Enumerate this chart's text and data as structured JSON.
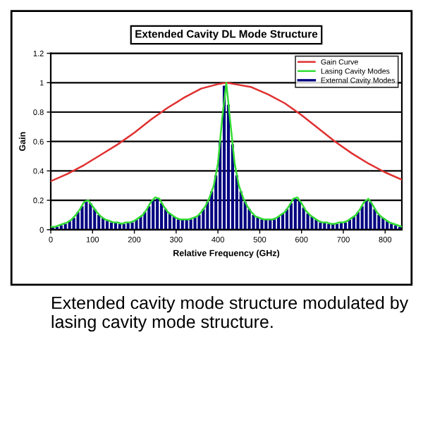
{
  "chart_data": {
    "type": "line",
    "title": "Extended Cavity DL Mode Structure",
    "xlabel": "Relative Frequency (GHz)",
    "ylabel": "Gain",
    "xlim": [
      0,
      840
    ],
    "xticks": [
      0,
      100,
      200,
      300,
      400,
      500,
      600,
      700,
      800
    ],
    "ylim": [
      0,
      1.2
    ],
    "yticks": [
      0,
      0.2,
      0.4,
      0.6,
      0.8,
      1,
      1.2
    ],
    "grid": "y",
    "legend": "top right",
    "marker": "none",
    "annotations": [
      "Extended cavity mode structure modulated by lasing cavity mode structure."
    ],
    "series": [
      {
        "name": "Gain Curve",
        "color": "#e03030",
        "x": [
          0,
          40,
          80,
          120,
          160,
          200,
          240,
          280,
          320,
          360,
          400,
          420,
          440,
          480,
          520,
          560,
          600,
          640,
          680,
          720,
          760,
          800,
          840
        ],
        "values": [
          0.33,
          0.38,
          0.44,
          0.51,
          0.58,
          0.66,
          0.75,
          0.83,
          0.9,
          0.96,
          0.99,
          1.0,
          0.99,
          0.97,
          0.92,
          0.86,
          0.78,
          0.69,
          0.6,
          0.52,
          0.45,
          0.39,
          0.34
        ]
      },
      {
        "name": "Lasing Cavity Modes",
        "color": "#33dd33",
        "x": [
          0,
          10,
          20,
          30,
          40,
          50,
          60,
          70,
          80,
          90,
          100,
          110,
          120,
          130,
          140,
          150,
          160,
          170,
          180,
          190,
          200,
          210,
          220,
          230,
          240,
          250,
          260,
          270,
          280,
          290,
          300,
          310,
          320,
          330,
          340,
          350,
          360,
          370,
          380,
          390,
          400,
          410,
          420,
          430,
          440,
          450,
          460,
          470,
          480,
          490,
          500,
          510,
          520,
          530,
          540,
          550,
          560,
          570,
          580,
          590,
          600,
          610,
          620,
          630,
          640,
          650,
          660,
          670,
          680,
          690,
          700,
          710,
          720,
          730,
          740,
          750,
          760,
          770,
          780,
          790,
          800,
          810,
          820,
          830,
          840
        ],
        "values": [
          0.02,
          0.02,
          0.03,
          0.04,
          0.05,
          0.07,
          0.1,
          0.14,
          0.19,
          0.2,
          0.16,
          0.12,
          0.09,
          0.07,
          0.06,
          0.05,
          0.05,
          0.04,
          0.05,
          0.05,
          0.06,
          0.08,
          0.1,
          0.14,
          0.19,
          0.22,
          0.21,
          0.16,
          0.12,
          0.1,
          0.08,
          0.07,
          0.07,
          0.07,
          0.08,
          0.09,
          0.12,
          0.16,
          0.22,
          0.3,
          0.45,
          0.75,
          1.0,
          0.72,
          0.45,
          0.3,
          0.22,
          0.16,
          0.12,
          0.09,
          0.08,
          0.07,
          0.07,
          0.07,
          0.08,
          0.1,
          0.12,
          0.16,
          0.21,
          0.22,
          0.18,
          0.13,
          0.1,
          0.08,
          0.06,
          0.05,
          0.05,
          0.04,
          0.04,
          0.05,
          0.05,
          0.06,
          0.08,
          0.1,
          0.14,
          0.19,
          0.21,
          0.17,
          0.12,
          0.09,
          0.07,
          0.05,
          0.04,
          0.03,
          0.02
        ]
      },
      {
        "name": "External Cavity Modes",
        "type": "bar",
        "color": "#000080",
        "x": [
          5,
          15,
          25,
          35,
          45,
          55,
          65,
          75,
          85,
          95,
          105,
          115,
          125,
          135,
          145,
          155,
          165,
          175,
          185,
          195,
          205,
          215,
          225,
          235,
          245,
          255,
          265,
          275,
          285,
          295,
          305,
          315,
          325,
          335,
          345,
          355,
          365,
          375,
          385,
          395,
          405,
          415,
          425,
          435,
          445,
          455,
          465,
          475,
          485,
          495,
          505,
          515,
          525,
          535,
          545,
          555,
          565,
          575,
          585,
          595,
          605,
          615,
          625,
          635,
          645,
          655,
          665,
          675,
          685,
          695,
          705,
          715,
          725,
          735,
          745,
          755,
          765,
          775,
          785,
          795,
          805,
          815,
          825,
          835
        ],
        "values": [
          0.02,
          0.02,
          0.03,
          0.04,
          0.06,
          0.08,
          0.12,
          0.16,
          0.19,
          0.18,
          0.14,
          0.1,
          0.08,
          0.06,
          0.05,
          0.05,
          0.04,
          0.04,
          0.05,
          0.05,
          0.07,
          0.09,
          0.12,
          0.16,
          0.2,
          0.21,
          0.18,
          0.14,
          0.11,
          0.09,
          0.07,
          0.07,
          0.07,
          0.07,
          0.08,
          0.1,
          0.14,
          0.19,
          0.26,
          0.37,
          0.6,
          0.98,
          0.85,
          0.58,
          0.37,
          0.26,
          0.19,
          0.14,
          0.1,
          0.08,
          0.07,
          0.07,
          0.07,
          0.07,
          0.09,
          0.11,
          0.14,
          0.18,
          0.21,
          0.2,
          0.15,
          0.11,
          0.09,
          0.07,
          0.05,
          0.05,
          0.04,
          0.04,
          0.04,
          0.05,
          0.05,
          0.07,
          0.09,
          0.12,
          0.16,
          0.2,
          0.19,
          0.14,
          0.1,
          0.08,
          0.06,
          0.04,
          0.03,
          0.02
        ]
      }
    ]
  }
}
